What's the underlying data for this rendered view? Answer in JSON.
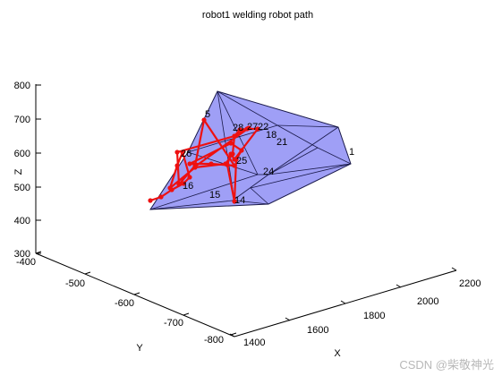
{
  "chart_data": {
    "type": "3d-surface-path",
    "title": "robot1 welding robot path",
    "xlabel": "X",
    "ylabel": "Y",
    "zlabel": "Z",
    "x_ticks": [
      "1400",
      "1600",
      "1800",
      "2000",
      "2200"
    ],
    "y_ticks": [
      "-400",
      "-500",
      "-600",
      "-700",
      "-800"
    ],
    "z_ticks": [
      "300",
      "400",
      "500",
      "600",
      "700",
      "800"
    ],
    "xlim": [
      1400,
      2200
    ],
    "ylim": [
      -800,
      -400
    ],
    "zlim": [
      300,
      800
    ],
    "surface_color": "#9a9af5",
    "edge_color": "#1a1a4a",
    "path_color": "#ee1111",
    "point_labels": [
      "1",
      "5",
      "14",
      "15",
      "16",
      "18",
      "21",
      "22",
      "24",
      "25",
      "26",
      "27",
      "28"
    ],
    "watermark": "CSDN @柴敬神光"
  },
  "colors": {
    "surface": "#9a9af5",
    "path": "#ee1111",
    "axis": "#000000"
  }
}
